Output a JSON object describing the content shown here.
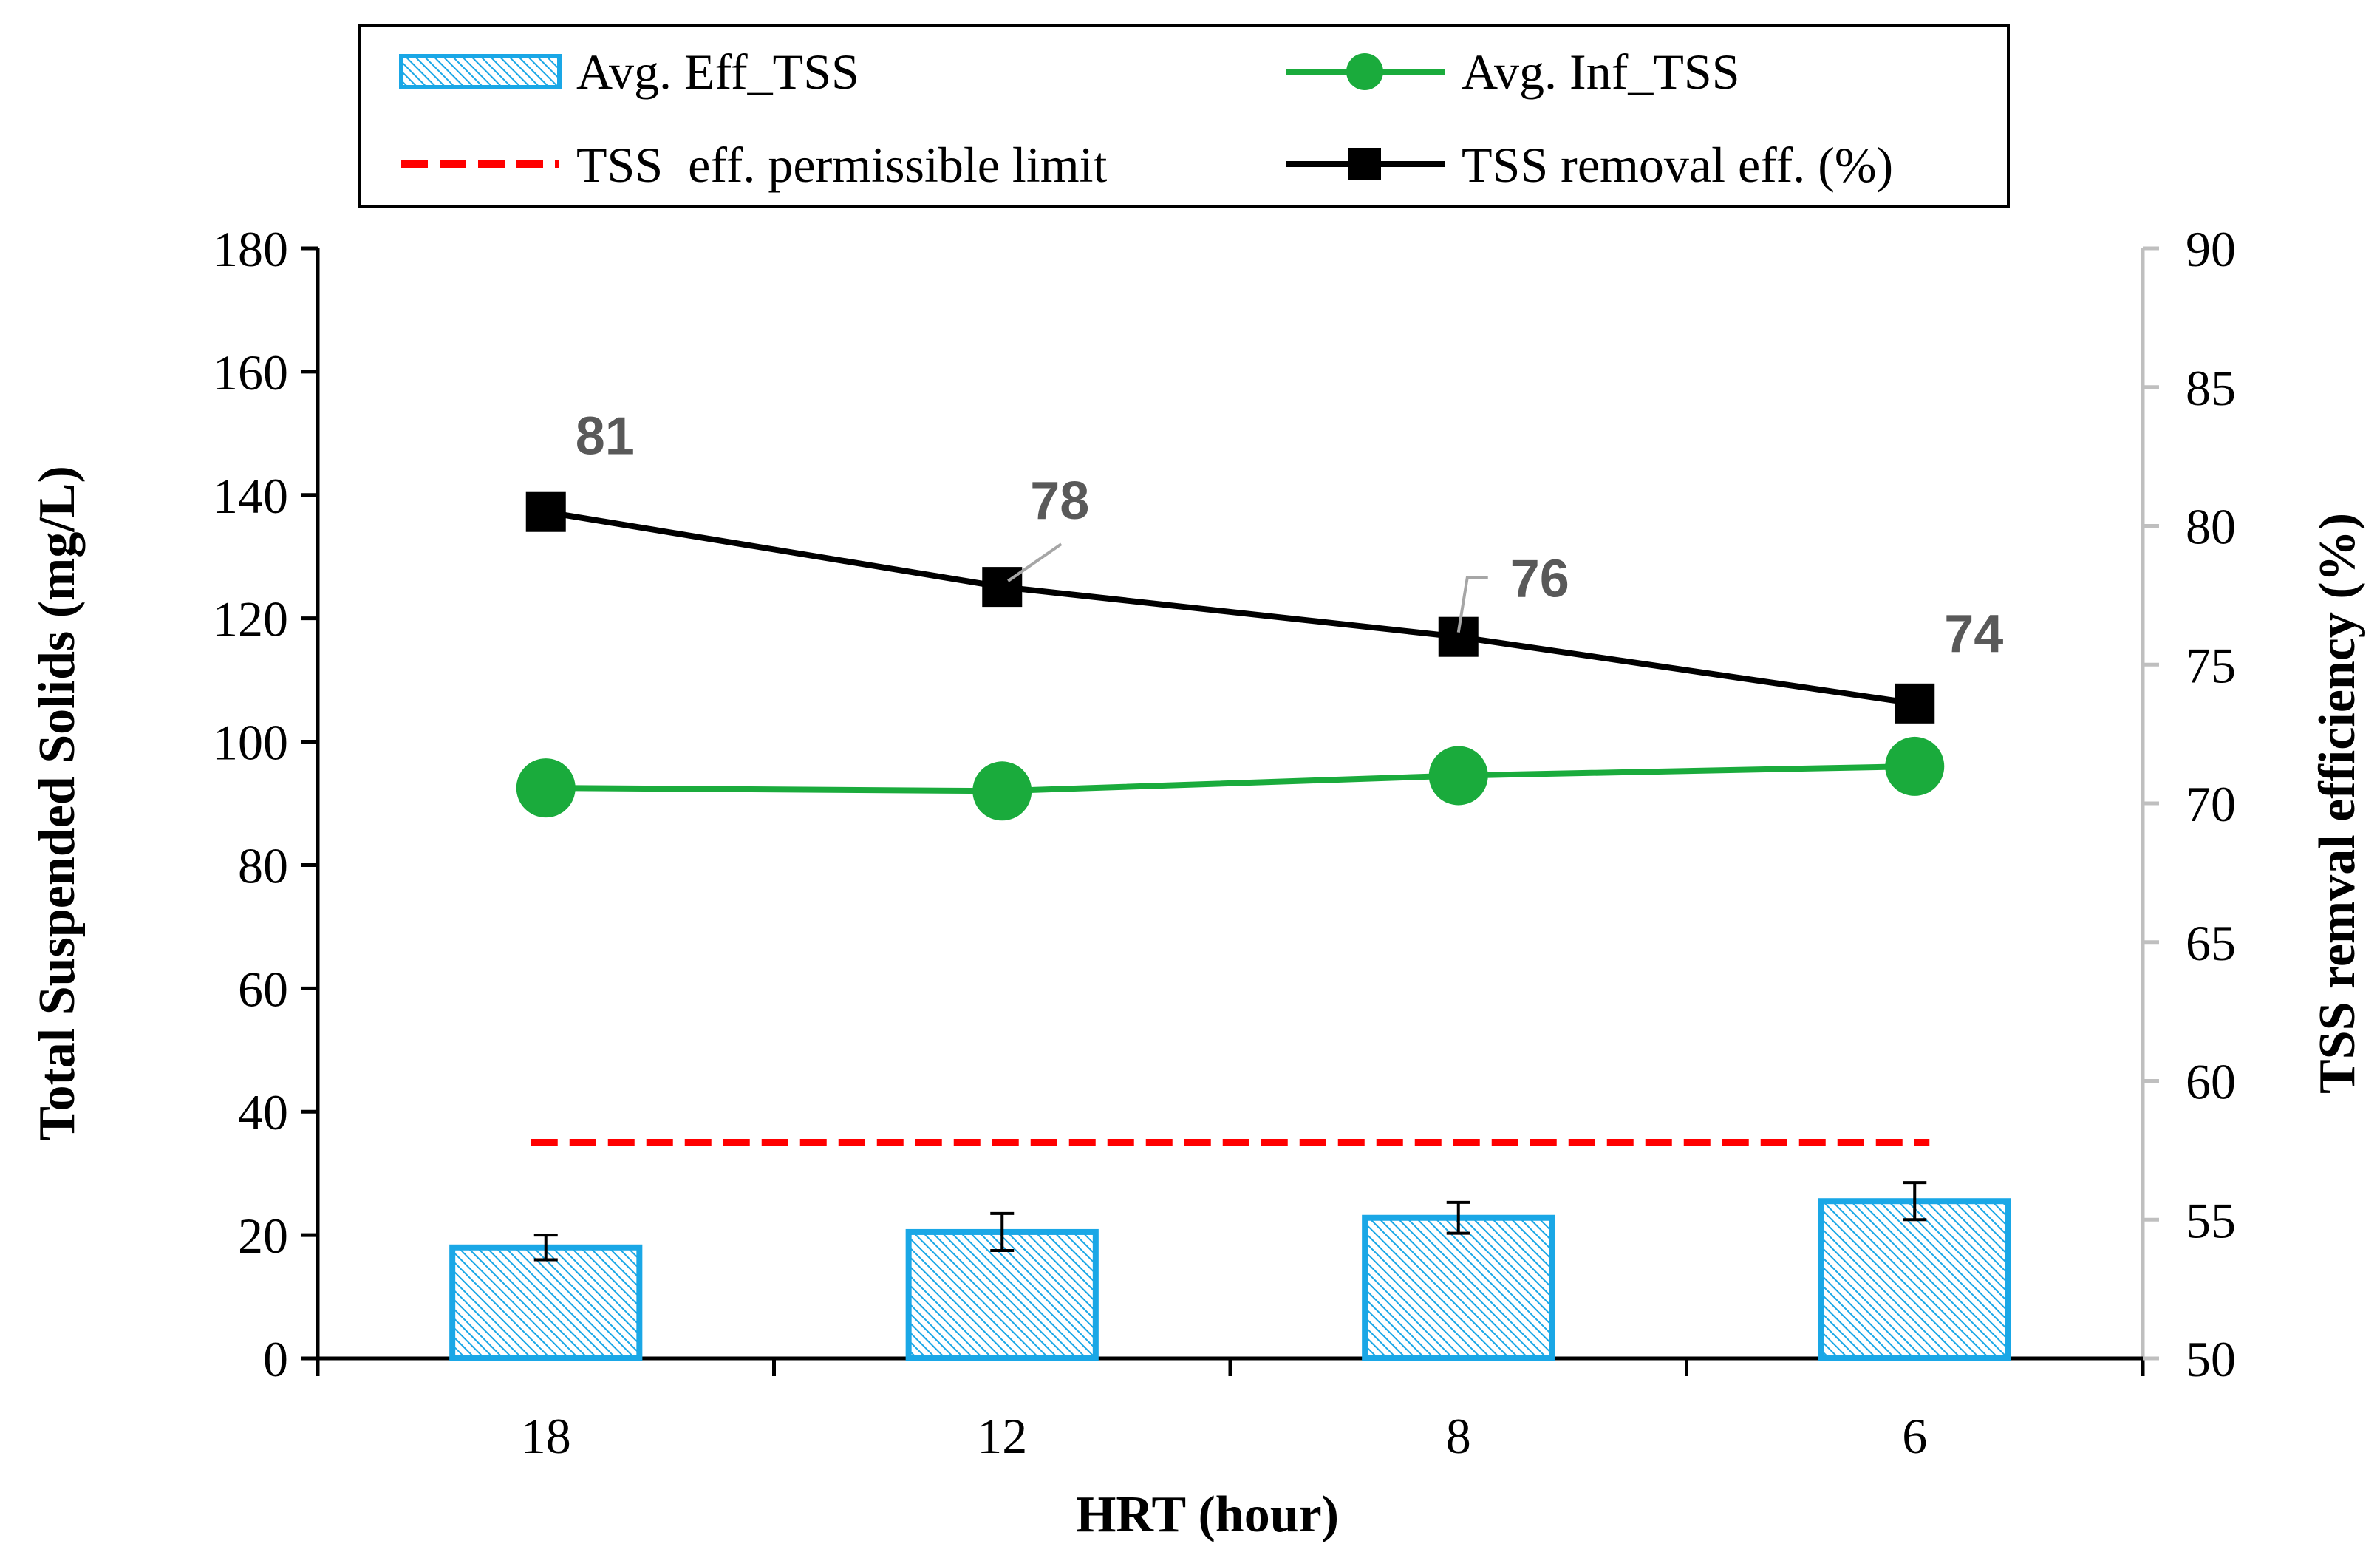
{
  "chart_data": {
    "type": "bar+line",
    "categories": [
      "18",
      "12",
      "8",
      "6"
    ],
    "xlabel": "HRT (hour)",
    "ylabel_left": "Total Suspended Solids (mg/L)",
    "ylabel_right": "TSS remval efficiency (%)",
    "ylim_left": [
      0,
      180
    ],
    "ylim_right": [
      50,
      90
    ],
    "yticks_left": [
      "0",
      "20",
      "40",
      "60",
      "80",
      "100",
      "120",
      "140",
      "160",
      "180"
    ],
    "yticks_right": [
      "50",
      "55",
      "60",
      "65",
      "70",
      "75",
      "80",
      "85",
      "90"
    ],
    "grid": false,
    "legend_position": "top",
    "series": [
      {
        "name": "Avg. Eff_TSS",
        "kind": "bar",
        "axis": "left",
        "values": [
          18,
          20.5,
          22.8,
          25.5
        ],
        "error": [
          2,
          3,
          2.5,
          3
        ],
        "color": "#1aa7e6"
      },
      {
        "name": "Avg. Inf_TSS",
        "kind": "line",
        "marker": "circle",
        "axis": "left",
        "values": [
          92.5,
          92,
          94.5,
          96
        ],
        "color": "#1aab3c"
      },
      {
        "name": "TSS  eff. permissible limit",
        "kind": "dashed-line",
        "axis": "left",
        "values": [
          35,
          35,
          35,
          35
        ],
        "color": "#ff0000"
      },
      {
        "name": "TSS removal eff. (%)",
        "kind": "line",
        "marker": "square",
        "axis": "right",
        "values": [
          80.5,
          77.8,
          76,
          73.6
        ],
        "labels": [
          "81",
          "78",
          "76",
          "74"
        ],
        "color": "#000000",
        "label_color": "#595959"
      }
    ]
  }
}
